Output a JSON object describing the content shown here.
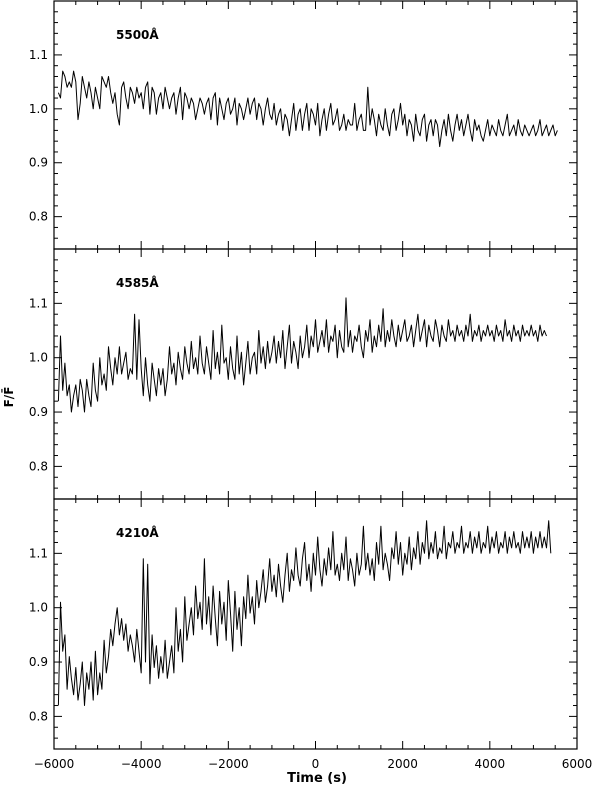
{
  "chart_data": {
    "type": "line",
    "xlabel": "Time (s)",
    "ylabel": "F/F̄",
    "xlim": [
      -6000,
      6000
    ],
    "ylim": [
      0.74,
      1.2
    ],
    "x_ticks": [
      -6000,
      -4000,
      -2000,
      0,
      2000,
      4000,
      6000
    ],
    "x_tick_labels": [
      "−6000",
      "−4000",
      "−2000",
      "0",
      "2000",
      "4000",
      "6000"
    ],
    "y_ticks": [
      0.8,
      0.9,
      1.0,
      1.1
    ],
    "y_tick_labels": [
      "0.8",
      "0.9",
      "1.0",
      "1.1"
    ],
    "panels": [
      {
        "label": "5500Å",
        "x_start": -5900,
        "x_step": 50,
        "values": [
          1.03,
          1.02,
          1.07,
          1.06,
          1.04,
          1.05,
          1.04,
          1.07,
          1.05,
          0.98,
          1.01,
          1.06,
          1.04,
          1.02,
          1.05,
          1.03,
          1.0,
          1.04,
          1.02,
          1.0,
          1.06,
          1.05,
          1.04,
          1.06,
          1.03,
          1.01,
          1.03,
          0.99,
          0.97,
          1.04,
          1.05,
          1.02,
          1.0,
          1.04,
          1.03,
          1.01,
          1.04,
          1.02,
          1.03,
          1.0,
          1.04,
          1.05,
          0.99,
          1.04,
          1.03,
          0.99,
          1.02,
          1.03,
          1.0,
          1.04,
          1.02,
          1.0,
          1.02,
          1.03,
          0.99,
          1.02,
          1.04,
          0.98,
          1.03,
          1.02,
          1.0,
          1.02,
          1.01,
          0.98,
          1.0,
          1.02,
          1.01,
          0.99,
          1.01,
          1.02,
          0.98,
          1.02,
          1.03,
          0.97,
          1.02,
          1.0,
          0.98,
          1.01,
          1.02,
          0.99,
          1.0,
          1.02,
          0.97,
          1.01,
          1.0,
          0.98,
          1.0,
          1.02,
          0.99,
          1.01,
          1.02,
          0.98,
          1.01,
          1.0,
          0.97,
          1.0,
          1.02,
          0.99,
          0.98,
          1.01,
          0.97,
          0.99,
          1.0,
          0.96,
          0.99,
          0.98,
          0.95,
          0.98,
          1.01,
          0.96,
          0.99,
          1.0,
          0.96,
          0.99,
          1.01,
          0.96,
          1.0,
          0.99,
          0.97,
          1.01,
          0.95,
          0.98,
          1.0,
          0.96,
          0.99,
          1.01,
          0.97,
          0.98,
          1.0,
          0.96,
          0.97,
          0.99,
          0.96,
          0.98,
          0.97,
          0.97,
          1.01,
          0.96,
          0.98,
          0.99,
          0.96,
          0.96,
          1.04,
          0.97,
          1.0,
          0.98,
          0.95,
          0.99,
          0.97,
          0.96,
          1.0,
          0.97,
          0.95,
          0.99,
          1.0,
          0.96,
          0.98,
          1.01,
          0.97,
          0.99,
          0.95,
          0.98,
          0.97,
          0.94,
          0.99,
          0.96,
          0.95,
          0.98,
          0.99,
          0.94,
          0.97,
          0.98,
          0.95,
          0.98,
          0.97,
          0.93,
          0.96,
          0.98,
          0.95,
          0.99,
          0.96,
          0.94,
          0.97,
          0.99,
          0.96,
          0.98,
          0.95,
          0.97,
          0.99,
          0.96,
          0.94,
          0.98,
          0.96,
          0.97,
          0.95,
          0.94,
          0.96,
          0.98,
          0.95,
          0.97,
          0.96,
          0.95,
          0.98,
          0.96,
          0.95,
          0.97,
          0.99,
          0.95,
          0.96,
          0.97,
          0.95,
          0.98,
          0.96,
          0.95,
          0.97,
          0.96,
          0.95,
          0.96,
          0.97,
          0.95,
          0.96,
          0.98,
          0.95,
          0.96,
          0.97,
          0.95,
          0.96,
          0.97,
          0.95,
          0.96
        ]
      },
      {
        "label": "4585Å",
        "x_start": -5900,
        "x_step": 50,
        "values": [
          0.92,
          1.04,
          0.94,
          0.99,
          0.93,
          0.95,
          0.9,
          0.93,
          0.95,
          0.91,
          0.96,
          0.94,
          0.9,
          0.96,
          0.93,
          0.91,
          0.99,
          0.94,
          0.92,
          1.0,
          0.95,
          0.97,
          0.94,
          1.02,
          0.98,
          0.95,
          1.0,
          0.97,
          1.02,
          0.97,
          0.99,
          1.01,
          0.96,
          0.98,
          0.97,
          1.08,
          0.96,
          1.07,
          0.98,
          0.93,
          1.0,
          0.95,
          0.92,
          0.99,
          0.96,
          0.93,
          0.98,
          0.95,
          0.98,
          0.93,
          0.96,
          1.02,
          0.97,
          0.99,
          0.95,
          1.01,
          0.98,
          0.96,
          1.02,
          0.99,
          0.97,
          1.03,
          0.98,
          1.0,
          0.97,
          1.04,
          0.99,
          0.97,
          1.02,
          0.99,
          0.96,
          1.05,
          0.98,
          1.01,
          0.97,
          1.06,
          0.99,
          1.0,
          0.96,
          1.02,
          0.98,
          0.96,
          1.04,
          0.97,
          1.01,
          0.95,
          0.99,
          1.03,
          0.97,
          1.0,
          1.01,
          0.97,
          1.05,
          0.99,
          1.02,
          0.98,
          1.03,
          0.99,
          1.01,
          1.04,
          0.99,
          1.03,
          1.0,
          1.05,
          0.98,
          1.02,
          1.06,
          0.99,
          1.03,
          1.01,
          0.98,
          1.04,
          1.0,
          1.02,
          1.06,
          1.0,
          1.04,
          1.02,
          1.07,
          1.01,
          1.03,
          1.05,
          1.02,
          1.07,
          1.01,
          1.04,
          1.03,
          1.06,
          1.0,
          1.05,
          1.02,
          1.01,
          1.11,
          1.02,
          1.05,
          1.01,
          1.04,
          1.03,
          1.06,
          1.02,
          1.0,
          1.05,
          1.03,
          1.07,
          1.01,
          1.04,
          1.02,
          1.06,
          1.03,
          1.09,
          1.02,
          1.05,
          1.03,
          1.07,
          1.04,
          1.02,
          1.06,
          1.03,
          1.05,
          1.07,
          1.03,
          1.04,
          1.06,
          1.02,
          1.05,
          1.08,
          1.03,
          1.05,
          1.07,
          1.02,
          1.06,
          1.04,
          1.03,
          1.07,
          1.05,
          1.02,
          1.06,
          1.04,
          1.03,
          1.07,
          1.04,
          1.05,
          1.03,
          1.06,
          1.04,
          1.05,
          1.03,
          1.06,
          1.04,
          1.08,
          1.03,
          1.05,
          1.04,
          1.06,
          1.03,
          1.05,
          1.04,
          1.06,
          1.04,
          1.05,
          1.03,
          1.06,
          1.04,
          1.05,
          1.03,
          1.07,
          1.04,
          1.05,
          1.03,
          1.06,
          1.04,
          1.05,
          1.03,
          1.06,
          1.04,
          1.05,
          1.04,
          1.06,
          1.04,
          1.05,
          1.03,
          1.06,
          1.04,
          1.05,
          1.04
        ]
      },
      {
        "label": "4210Å",
        "x_start": -5900,
        "x_step": 50,
        "values": [
          0.82,
          1.01,
          0.92,
          0.95,
          0.85,
          0.91,
          0.87,
          0.84,
          0.89,
          0.83,
          0.86,
          0.9,
          0.82,
          0.88,
          0.85,
          0.9,
          0.83,
          0.92,
          0.84,
          0.88,
          0.85,
          0.94,
          0.88,
          0.91,
          0.96,
          0.93,
          0.97,
          1.0,
          0.95,
          0.98,
          0.94,
          0.97,
          0.92,
          0.95,
          0.93,
          0.9,
          0.96,
          0.92,
          0.88,
          1.09,
          0.9,
          1.08,
          0.86,
          0.95,
          0.89,
          0.93,
          0.87,
          0.91,
          0.88,
          0.94,
          0.87,
          0.9,
          0.93,
          0.88,
          1.0,
          0.92,
          0.96,
          0.9,
          1.02,
          0.94,
          0.97,
          1.0,
          0.95,
          1.04,
          0.98,
          1.01,
          0.96,
          1.09,
          0.97,
          1.02,
          0.95,
          1.04,
          0.98,
          0.93,
          1.03,
          0.97,
          1.01,
          0.94,
          1.05,
          0.99,
          0.92,
          1.03,
          0.96,
          1.0,
          0.93,
          1.02,
          0.98,
          1.06,
          0.99,
          1.02,
          0.97,
          1.05,
          1.0,
          1.03,
          1.07,
          1.01,
          1.04,
          1.09,
          1.03,
          1.06,
          1.02,
          1.08,
          1.04,
          1.01,
          1.06,
          1.1,
          1.03,
          1.07,
          1.05,
          1.11,
          1.06,
          1.04,
          1.09,
          1.12,
          1.05,
          1.08,
          1.03,
          1.1,
          1.06,
          1.13,
          1.07,
          1.04,
          1.09,
          1.06,
          1.11,
          1.07,
          1.14,
          1.06,
          1.08,
          1.05,
          1.1,
          1.07,
          1.13,
          1.05,
          1.09,
          1.07,
          1.04,
          1.1,
          1.06,
          1.08,
          1.15,
          1.07,
          1.1,
          1.06,
          1.09,
          1.05,
          1.12,
          1.08,
          1.15,
          1.07,
          1.1,
          1.08,
          1.05,
          1.11,
          1.09,
          1.14,
          1.08,
          1.12,
          1.06,
          1.1,
          1.08,
          1.13,
          1.07,
          1.11,
          1.09,
          1.14,
          1.08,
          1.12,
          1.1,
          1.16,
          1.09,
          1.12,
          1.1,
          1.14,
          1.09,
          1.11,
          1.1,
          1.15,
          1.09,
          1.12,
          1.11,
          1.14,
          1.1,
          1.12,
          1.11,
          1.15,
          1.1,
          1.12,
          1.11,
          1.14,
          1.1,
          1.13,
          1.11,
          1.14,
          1.1,
          1.12,
          1.11,
          1.15,
          1.1,
          1.13,
          1.11,
          1.14,
          1.1,
          1.12,
          1.11,
          1.14,
          1.1,
          1.13,
          1.11,
          1.14,
          1.11,
          1.12,
          1.1,
          1.14,
          1.11,
          1.13,
          1.11,
          1.14,
          1.1,
          1.13,
          1.11,
          1.14,
          1.11,
          1.13,
          1.11,
          1.16,
          1.1
        ]
      }
    ]
  }
}
